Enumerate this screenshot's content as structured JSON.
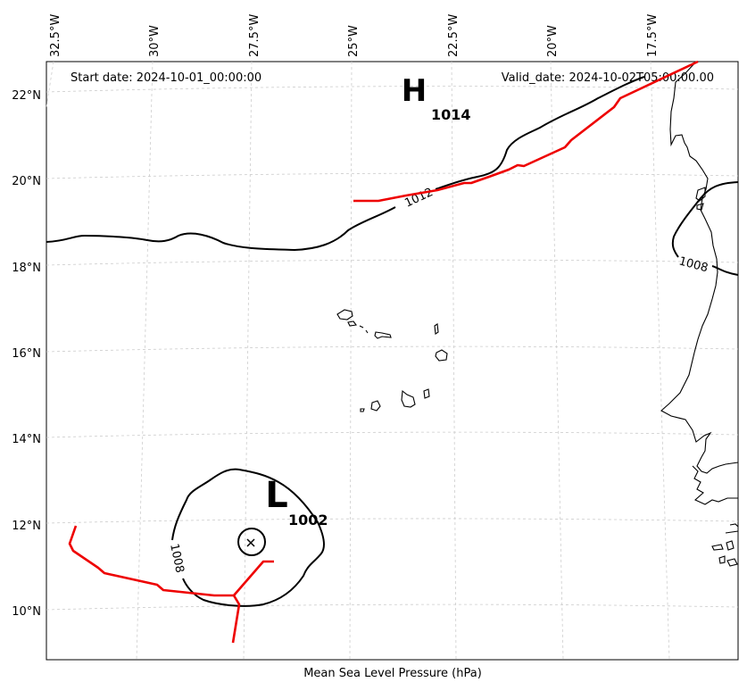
{
  "map": {
    "start_date": "Start date: 2024-10-01_00:00:00",
    "valid_date": "Valid_date: 2024-10-02T05:00:00.00",
    "footer": "Mean Sea Level Pressure (hPa)",
    "lon_ticks": [
      "32.5°W",
      "30°W",
      "27.5°W",
      "25°W",
      "22.5°W",
      "20°W",
      "17.5°W"
    ],
    "lat_ticks": [
      "22°N",
      "20°N",
      "18°N",
      "16°N",
      "14°N",
      "12°N",
      "10°N"
    ],
    "high": {
      "letter": "H",
      "value": "1014"
    },
    "low": {
      "letter": "L",
      "value": "1002"
    },
    "contour_labels": {
      "north": "1012",
      "east": "1008",
      "low": "1008"
    },
    "colors": {
      "front": "#ee0000",
      "isobar": "#000000",
      "grid": "#cccccc"
    }
  }
}
